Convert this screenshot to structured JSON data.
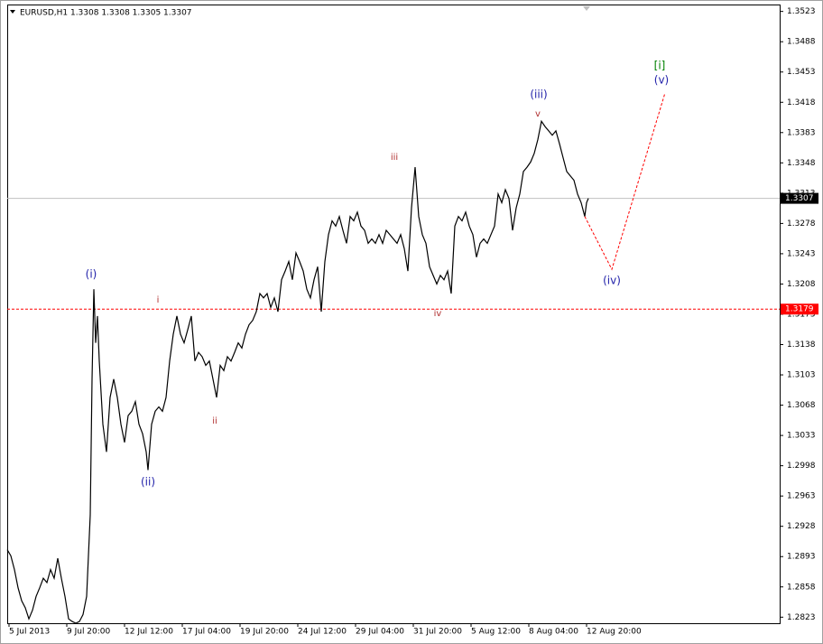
{
  "chart_data": {
    "type": "line",
    "title": "EURUSD,H1 1.3308 1.3308 1.3305 1.3307",
    "xlim": [
      0,
      856
    ],
    "xticks": [
      {
        "value": 2,
        "label": "5 Jul 2013"
      },
      {
        "value": 66,
        "label": "9 Jul 20:00"
      },
      {
        "value": 130,
        "label": "12 Jul 12:00"
      },
      {
        "value": 194,
        "label": "17 Jul 04:00"
      },
      {
        "value": 258,
        "label": "19 Jul 20:00"
      },
      {
        "value": 322,
        "label": "24 Jul 12:00"
      },
      {
        "value": 386,
        "label": "29 Jul 04:00"
      },
      {
        "value": 450,
        "label": "31 Jul 20:00"
      },
      {
        "value": 514,
        "label": "5 Aug 12:00"
      },
      {
        "value": 578,
        "label": "8 Aug 04:00"
      },
      {
        "value": 642,
        "label": "12 Aug 20:00"
      }
    ],
    "ylim": [
      1.2816,
      1.3531
    ],
    "yticks": [
      1.2823,
      1.2858,
      1.2893,
      1.2928,
      1.2963,
      1.2998,
      1.3033,
      1.3068,
      1.3103,
      1.3138,
      1.3173,
      1.3208,
      1.3243,
      1.3278,
      1.3313,
      1.3348,
      1.3383,
      1.3418,
      1.3453,
      1.3488,
      1.3523
    ],
    "x": [
      0,
      4,
      8,
      12,
      16,
      20,
      24,
      28,
      32,
      36,
      40,
      44,
      48,
      52,
      56,
      60,
      64,
      68,
      72,
      76,
      80,
      84,
      88,
      92,
      94,
      96,
      98,
      100,
      102,
      106,
      110,
      114,
      118,
      122,
      126,
      130,
      134,
      138,
      142,
      146,
      150,
      154,
      156,
      160,
      164,
      168,
      172,
      176,
      180,
      184,
      188,
      192,
      196,
      200,
      204,
      208,
      212,
      216,
      220,
      224,
      228,
      232,
      236,
      240,
      244,
      248,
      252,
      256,
      260,
      264,
      268,
      272,
      276,
      280,
      284,
      288,
      292,
      296,
      300,
      304,
      308,
      312,
      316,
      320,
      324,
      328,
      332,
      336,
      340,
      344,
      348,
      352,
      356,
      360,
      364,
      368,
      372,
      376,
      380,
      384,
      388,
      392,
      396,
      400,
      404,
      408,
      412,
      416,
      420,
      424,
      428,
      432,
      436,
      440,
      444,
      448,
      452,
      456,
      460,
      464,
      468,
      472,
      476,
      480,
      484,
      488,
      492,
      496,
      500,
      504,
      508,
      512,
      516,
      520,
      524,
      528,
      532,
      536,
      540,
      544,
      548,
      552,
      556,
      560,
      564,
      568,
      572,
      576,
      580,
      584,
      588,
      592,
      596,
      600,
      604,
      608,
      612,
      616,
      620,
      624,
      628,
      632,
      636,
      640,
      642,
      644
    ],
    "series": [
      {
        "color": "#000000",
        "values": [
          1.2901,
          1.2894,
          1.2878,
          1.2857,
          1.2842,
          1.2834,
          1.2821,
          1.2831,
          1.2847,
          1.2857,
          1.2868,
          1.2863,
          1.2878,
          1.2868,
          1.2891,
          1.2868,
          1.2847,
          1.2821,
          1.2818,
          1.2816,
          1.2818,
          1.2826,
          1.2847,
          1.2941,
          1.3098,
          1.3202,
          1.314,
          1.3171,
          1.3119,
          1.3046,
          1.3014,
          1.3077,
          1.3098,
          1.3077,
          1.3046,
          1.3025,
          1.3056,
          1.3061,
          1.3072,
          1.3046,
          1.3035,
          1.3014,
          1.2993,
          1.3046,
          1.3061,
          1.3066,
          1.3061,
          1.3077,
          1.3119,
          1.315,
          1.3171,
          1.315,
          1.314,
          1.3155,
          1.3171,
          1.3119,
          1.3129,
          1.3124,
          1.3114,
          1.3119,
          1.3098,
          1.3077,
          1.3114,
          1.3108,
          1.3124,
          1.3119,
          1.3129,
          1.314,
          1.3134,
          1.315,
          1.3161,
          1.3166,
          1.3176,
          1.3197,
          1.3192,
          1.3197,
          1.3181,
          1.3192,
          1.3176,
          1.3213,
          1.3223,
          1.3234,
          1.3213,
          1.3244,
          1.3234,
          1.3223,
          1.3202,
          1.3192,
          1.3213,
          1.3228,
          1.3176,
          1.3234,
          1.3265,
          1.3281,
          1.3275,
          1.3286,
          1.327,
          1.3255,
          1.3286,
          1.3281,
          1.3291,
          1.3275,
          1.327,
          1.3255,
          1.326,
          1.3255,
          1.3265,
          1.3255,
          1.327,
          1.3265,
          1.326,
          1.3255,
          1.3265,
          1.3249,
          1.3223,
          1.3296,
          1.3343,
          1.3286,
          1.3265,
          1.3255,
          1.3228,
          1.3218,
          1.3208,
          1.3218,
          1.3213,
          1.3223,
          1.3197,
          1.3275,
          1.3286,
          1.3281,
          1.3291,
          1.3275,
          1.3265,
          1.3239,
          1.3255,
          1.326,
          1.3255,
          1.3265,
          1.3275,
          1.3312,
          1.3302,
          1.3317,
          1.3307,
          1.327,
          1.3296,
          1.3312,
          1.3338,
          1.3343,
          1.3349,
          1.3359,
          1.3375,
          1.3396,
          1.339,
          1.3385,
          1.338,
          1.3385,
          1.337,
          1.3354,
          1.3338,
          1.3333,
          1.3328,
          1.3312,
          1.3302,
          1.3286,
          1.3302,
          1.3307
        ]
      }
    ],
    "projection": {
      "x": [
        640,
        670,
        729
      ],
      "values": [
        1.3286,
        1.3225,
        1.3429
      ],
      "color": "#ff0000",
      "dashed": true
    },
    "hlines": [
      {
        "value": 1.3307,
        "color": "#c0c0c0",
        "label_color": "#000000",
        "dashed": false
      },
      {
        "value": 1.3179,
        "color": "#ff0000",
        "label_color": "#ff0000",
        "dashed": true
      }
    ],
    "annotations": [
      {
        "text": "(i)",
        "color": "#2222aa"
      },
      {
        "text": "(ii)",
        "color": "#2222aa"
      },
      {
        "text": "(iii)",
        "color": "#2222aa"
      },
      {
        "text": "(iv)",
        "color": "#2222aa"
      },
      {
        "text": "(v)",
        "color": "#2222aa"
      },
      {
        "text": "[i]",
        "color": "#008000"
      },
      {
        "text": "i",
        "color": "#b03030"
      },
      {
        "text": "ii",
        "color": "#b03030"
      },
      {
        "text": "iii",
        "color": "#b03030"
      },
      {
        "text": "iv",
        "color": "#b03030"
      },
      {
        "text": "v",
        "color": "#b03030"
      }
    ]
  }
}
